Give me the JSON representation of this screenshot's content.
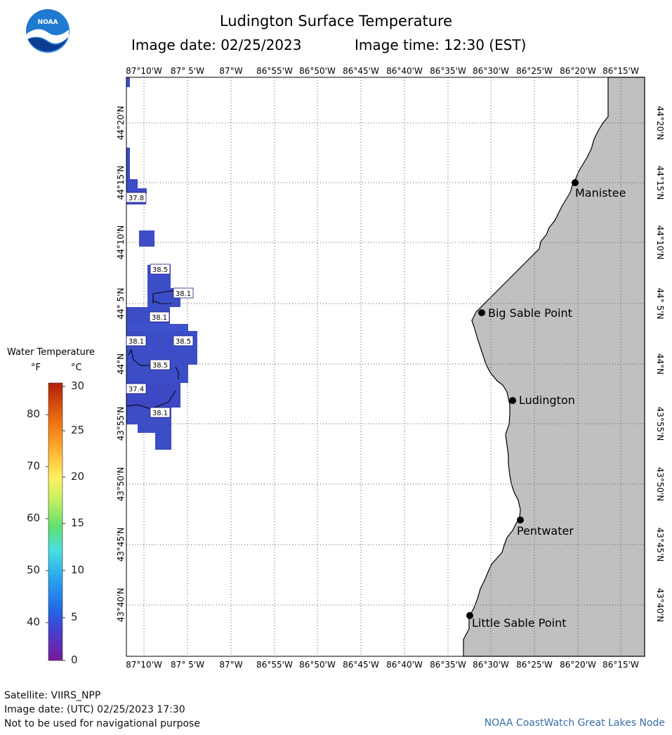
{
  "header": {
    "title": "Ludington Surface Temperature",
    "image_date": "Image date: 02/25/2023",
    "image_time": "Image time: 12:30 (EST)"
  },
  "logo": {
    "text": "NOAA"
  },
  "map": {
    "lon_ticks": [
      "87°10'W",
      "87° 5'W",
      "87°W",
      "86°55'W",
      "86°50'W",
      "86°45'W",
      "86°40'W",
      "86°35'W",
      "86°30'W",
      "86°25'W",
      "86°20'W",
      "86°15'W"
    ],
    "lat_ticks": [
      "44°20'N",
      "44°15'N",
      "44°10'N",
      "44° 5'N",
      "44°N",
      "43°55'N",
      "43°50'N",
      "43°45'N",
      "43°40'N"
    ],
    "land_color": "#c0c0c0",
    "water_color": "#3c4dc8",
    "cities": [
      {
        "name": "Manistee"
      },
      {
        "name": "Big Sable Point"
      },
      {
        "name": "Ludington"
      },
      {
        "name": "Pentwater"
      },
      {
        "name": "Little Sable Point"
      }
    ],
    "temp_labels": [
      "37.8",
      "38.5",
      "38.1",
      "38.1",
      "38.1",
      "38.5",
      "38.5",
      "37.4",
      "38.1"
    ]
  },
  "legend": {
    "title": "Water Temperature",
    "unit_f": "°F",
    "unit_c": "°C",
    "f_ticks": [
      "80",
      "70",
      "60",
      "50",
      "40"
    ],
    "c_ticks": [
      "30",
      "25",
      "20",
      "15",
      "10",
      "5",
      "0"
    ]
  },
  "footer": {
    "satellite": "Satellite: VIIRS_NPP",
    "utc_date": "Image date: (UTC) 02/25/2023  17:30",
    "disclaimer": "Not to be used for navigational purpose",
    "credit": "NOAA CoastWatch Great Lakes Node"
  }
}
